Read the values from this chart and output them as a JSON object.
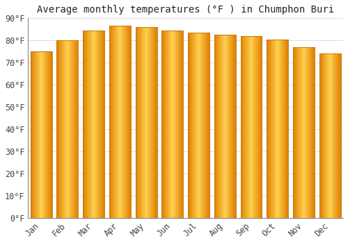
{
  "title": "Average monthly temperatures (°F ) in Chumphon Buri",
  "months": [
    "Jan",
    "Feb",
    "Mar",
    "Apr",
    "May",
    "Jun",
    "Jul",
    "Aug",
    "Sep",
    "Oct",
    "Nov",
    "Dec"
  ],
  "values": [
    75,
    80,
    84.5,
    86.5,
    86,
    84.5,
    83.5,
    82.5,
    82,
    80.5,
    77,
    74
  ],
  "bar_color_left": "#F5A800",
  "bar_color_center": "#FFD060",
  "bar_color_right": "#E08000",
  "background_color": "#FFFFFF",
  "grid_color": "#DDDDDD",
  "ylim": [
    0,
    90
  ],
  "yticks": [
    0,
    10,
    20,
    30,
    40,
    50,
    60,
    70,
    80,
    90
  ],
  "ylabel_suffix": "°F",
  "title_fontsize": 10,
  "tick_fontsize": 8.5
}
